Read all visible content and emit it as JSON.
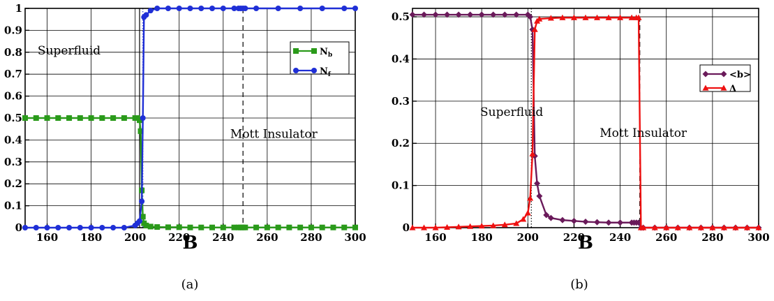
{
  "chart_data": [
    {
      "type": "line",
      "panel_label": "(a)",
      "xlabel": "B",
      "xlim": [
        150,
        300
      ],
      "ylim": [
        0,
        1
      ],
      "x_ticks": [
        160,
        180,
        200,
        220,
        240,
        260,
        280,
        300
      ],
      "y_ticks": [
        0,
        0.1,
        0.2,
        0.3,
        0.4,
        0.5,
        0.6,
        0.7,
        0.8,
        0.9,
        1
      ],
      "grid": true,
      "legend_position": "top-right",
      "annotations": [
        {
          "text": "Superfluid",
          "x": 170,
          "y": 0.79
        },
        {
          "text": "Mott Insulator",
          "x": 263,
          "y": 0.41
        }
      ],
      "vlines": [
        {
          "x": 202,
          "style": "solid"
        },
        {
          "x": 203.5,
          "style": "dotted"
        },
        {
          "x": 249,
          "style": "dashed"
        }
      ],
      "series": [
        {
          "name": "N",
          "name_sub": "b",
          "color": "#2a9a1a",
          "marker": "square",
          "x": [
            150,
            155,
            160,
            165,
            170,
            175,
            180,
            185,
            190,
            195,
            200,
            201,
            202,
            202.5,
            203,
            203.5,
            204,
            205,
            207,
            210,
            215,
            220,
            225,
            230,
            235,
            240,
            245,
            247,
            248,
            249,
            250,
            255,
            260,
            265,
            270,
            275,
            280,
            285,
            290,
            295,
            300
          ],
          "y": [
            0.5,
            0.5,
            0.5,
            0.5,
            0.5,
            0.5,
            0.5,
            0.5,
            0.5,
            0.5,
            0.5,
            0.5,
            0.49,
            0.44,
            0.17,
            0.05,
            0.02,
            0.01,
            0.005,
            0.003,
            0.002,
            0.002,
            0.001,
            0.001,
            0.001,
            0.001,
            0.001,
            0.001,
            0.001,
            0.001,
            0.001,
            0.001,
            0.001,
            0.001,
            0.001,
            0.001,
            0.001,
            0.001,
            0.001,
            0.001,
            0.001
          ]
        },
        {
          "name": "N",
          "name_sub": "f",
          "color": "#1f2fd6",
          "marker": "circle",
          "x": [
            150,
            155,
            160,
            165,
            170,
            175,
            180,
            185,
            190,
            195,
            200,
            201,
            202,
            203,
            203.5,
            204,
            205,
            207,
            210,
            215,
            220,
            225,
            230,
            235,
            240,
            245,
            247,
            248,
            249,
            250,
            255,
            265,
            275,
            285,
            295,
            300
          ],
          "y": [
            0,
            0,
            0,
            0,
            0,
            0,
            0,
            0,
            0,
            0,
            0.01,
            0.02,
            0.03,
            0.12,
            0.5,
            0.96,
            0.97,
            0.99,
            1,
            1,
            1,
            1,
            1,
            1,
            1,
            1,
            1,
            1,
            1,
            1,
            1,
            1,
            1,
            1,
            1,
            1
          ]
        }
      ]
    },
    {
      "type": "line",
      "panel_label": "(b)",
      "xlabel": "B",
      "xlim": [
        150,
        300
      ],
      "ylim": [
        0,
        0.52
      ],
      "x_ticks": [
        160,
        180,
        200,
        220,
        240,
        260,
        280,
        300
      ],
      "y_ticks": [
        0,
        0.1,
        0.2,
        0.3,
        0.4,
        0.5
      ],
      "grid": true,
      "legend_position": "top-right",
      "annotations": [
        {
          "text": "Superfluid",
          "x": 193,
          "y": 0.265
        },
        {
          "text": "Mott Insulator",
          "x": 250,
          "y": 0.215
        }
      ],
      "vlines": [
        {
          "x": 201.5,
          "style": "dotted"
        },
        {
          "x": 248.5,
          "style": "dashed"
        }
      ],
      "series": [
        {
          "name": "<b>",
          "color": "#6a1a5a",
          "marker": "diamond",
          "x": [
            150,
            155,
            160,
            165,
            170,
            175,
            180,
            185,
            190,
            195,
            200,
            201,
            202,
            203,
            204,
            205,
            208,
            210,
            215,
            220,
            225,
            230,
            235,
            240,
            245,
            246,
            247,
            248,
            249,
            250,
            255,
            260,
            265,
            270,
            275,
            280,
            285,
            290,
            295,
            300
          ],
          "y": [
            0.505,
            0.505,
            0.505,
            0.505,
            0.505,
            0.505,
            0.505,
            0.505,
            0.505,
            0.505,
            0.505,
            0.5,
            0.47,
            0.17,
            0.105,
            0.075,
            0.03,
            0.023,
            0.018,
            0.016,
            0.014,
            0.013,
            0.012,
            0.012,
            0.012,
            0.012,
            0.012,
            0.012,
            0.0,
            0.0,
            0.0,
            0.0,
            0.0,
            0.0,
            0.0,
            0.0,
            0.0,
            0.0,
            0.0,
            0.0
          ]
        },
        {
          "name": "Δ",
          "color": "#ee1111",
          "marker": "triangle",
          "x": [
            150,
            155,
            160,
            165,
            170,
            175,
            180,
            185,
            190,
            195,
            198,
            200,
            201,
            202,
            203,
            204,
            205,
            210,
            215,
            220,
            225,
            230,
            235,
            240,
            245,
            247,
            248,
            249,
            250,
            255,
            260,
            265,
            270,
            275,
            280,
            285,
            290,
            295,
            300
          ],
          "y": [
            0.0,
            0.0,
            0.0,
            0.001,
            0.002,
            0.003,
            0.004,
            0.005,
            0.007,
            0.01,
            0.02,
            0.035,
            0.07,
            0.175,
            0.47,
            0.49,
            0.495,
            0.497,
            0.498,
            0.498,
            0.498,
            0.498,
            0.498,
            0.498,
            0.498,
            0.498,
            0.498,
            0.0,
            0.0,
            0.0,
            0.0,
            0.0,
            0.0,
            0.0,
            0.0,
            0.0,
            0.0,
            0.0,
            0.0
          ]
        }
      ]
    }
  ]
}
